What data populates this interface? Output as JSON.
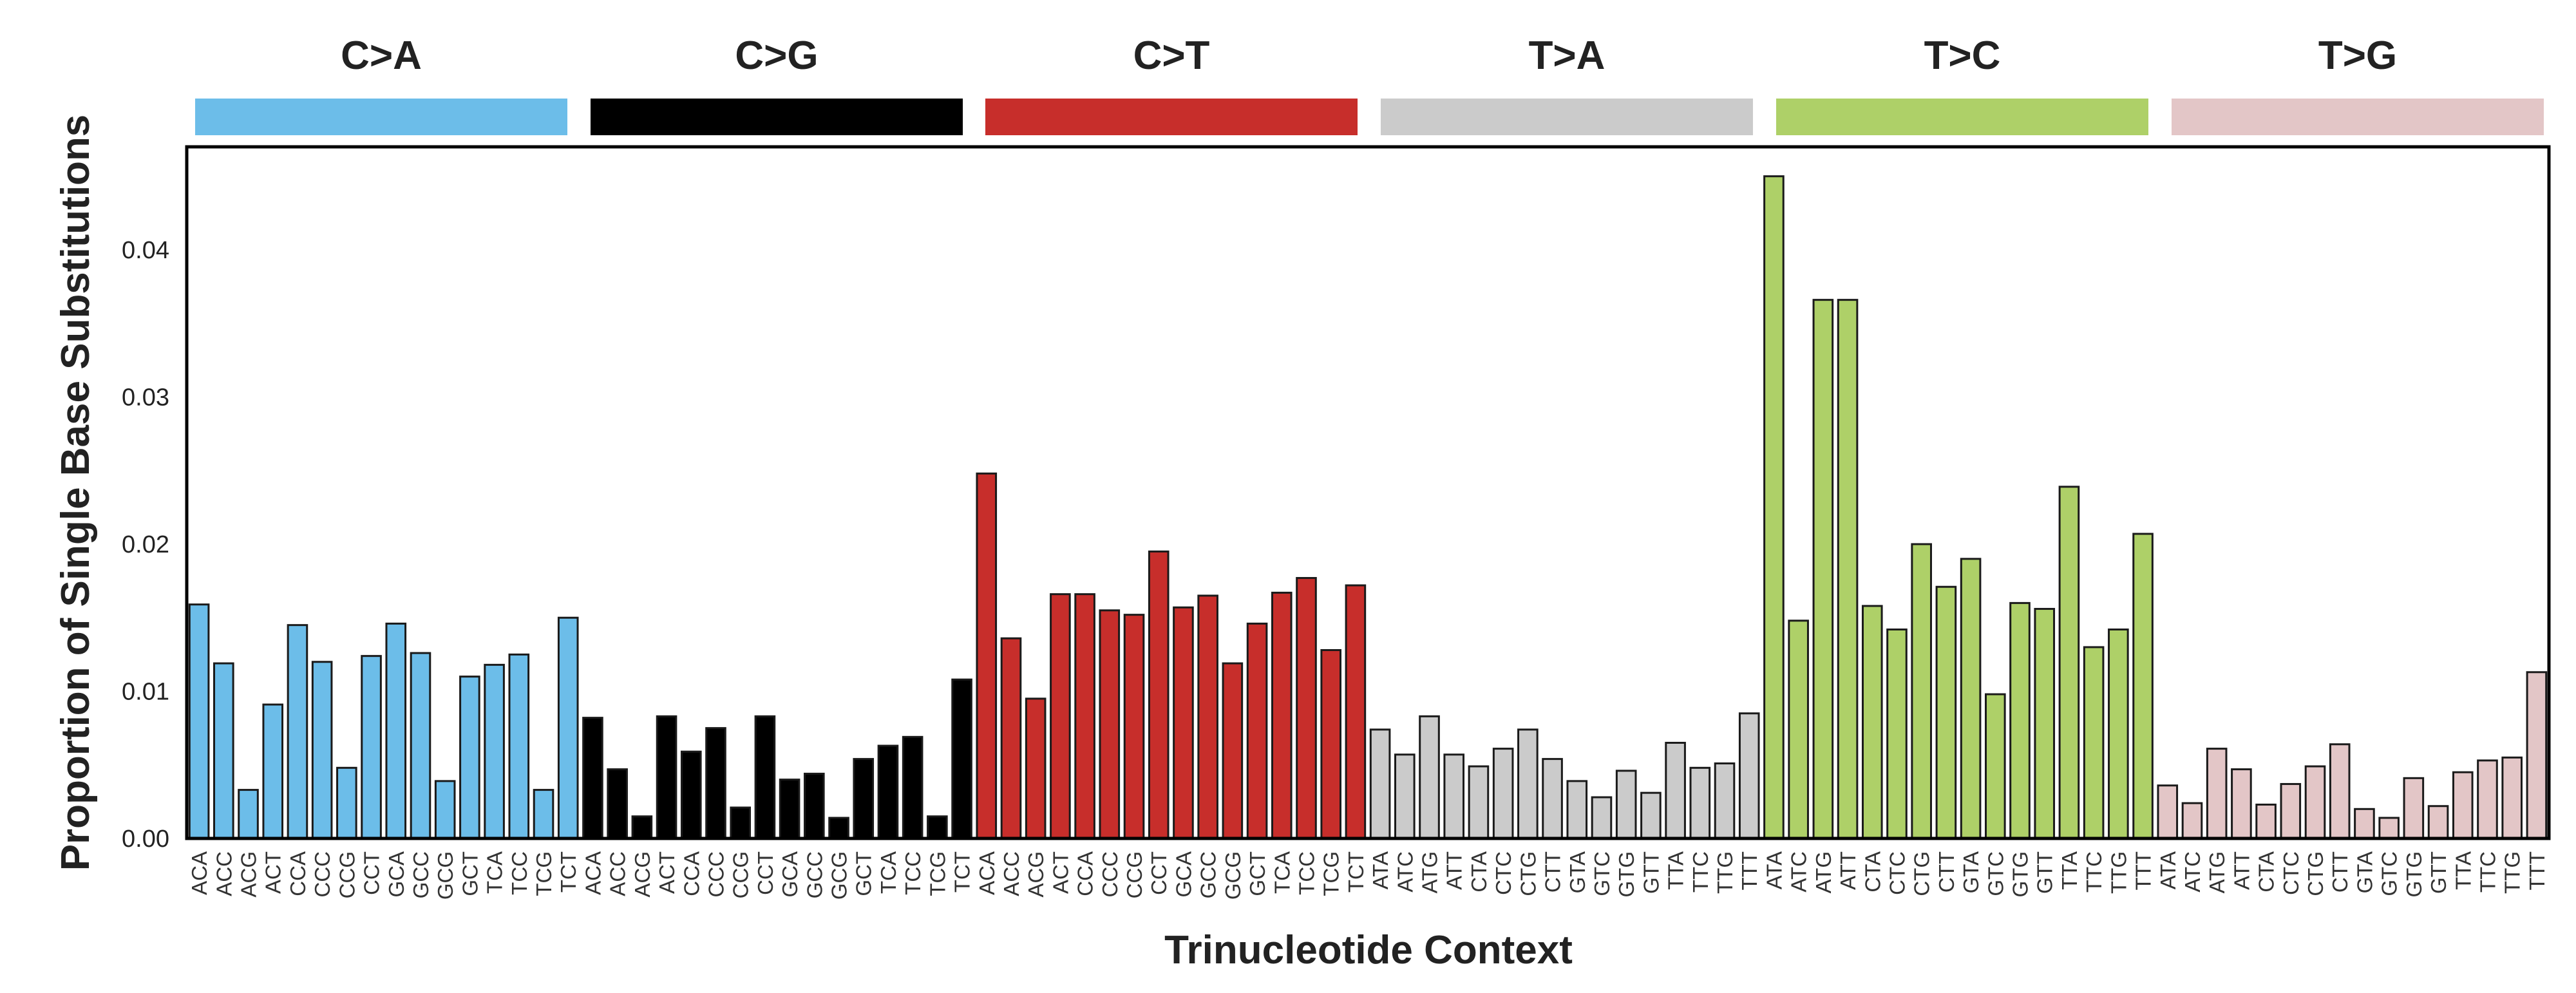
{
  "chart_data": {
    "type": "bar",
    "xlabel": "Trinucleotide Context",
    "ylabel": "Proportion of Single Base Substitutions",
    "ylim": [
      0,
      0.047
    ],
    "yticks": [
      0.0,
      0.01,
      0.02,
      0.03,
      0.04
    ],
    "ytick_labels": [
      "0.00",
      "0.01",
      "0.02",
      "0.03",
      "0.04"
    ],
    "grid": false,
    "groups": [
      {
        "name": "C>A",
        "color": "#6cbde9",
        "categories": [
          "ACA",
          "ACC",
          "ACG",
          "ACT",
          "CCA",
          "CCC",
          "CCG",
          "CCT",
          "GCA",
          "GCC",
          "GCG",
          "GCT",
          "TCA",
          "TCC",
          "TCG",
          "TCT"
        ],
        "values": [
          0.0159,
          0.0119,
          0.0033,
          0.0091,
          0.0145,
          0.012,
          0.0048,
          0.0124,
          0.0146,
          0.0126,
          0.0039,
          0.011,
          0.0118,
          0.0125,
          0.0033,
          0.015
        ]
      },
      {
        "name": "C>G",
        "color": "#000000",
        "categories": [
          "ACA",
          "ACC",
          "ACG",
          "ACT",
          "CCA",
          "CCC",
          "CCG",
          "CCT",
          "GCA",
          "GCC",
          "GCG",
          "GCT",
          "TCA",
          "TCC",
          "TCG",
          "TCT"
        ],
        "values": [
          0.0082,
          0.0047,
          0.0015,
          0.0083,
          0.0059,
          0.0075,
          0.0021,
          0.0083,
          0.004,
          0.0044,
          0.0014,
          0.0054,
          0.0063,
          0.0069,
          0.0015,
          0.0108
        ]
      },
      {
        "name": "C>T",
        "color": "#c72e2b",
        "categories": [
          "ACA",
          "ACC",
          "ACG",
          "ACT",
          "CCA",
          "CCC",
          "CCG",
          "CCT",
          "GCA",
          "GCC",
          "GCG",
          "GCT",
          "TCA",
          "TCC",
          "TCG",
          "TCT"
        ],
        "values": [
          0.0248,
          0.0136,
          0.0095,
          0.0166,
          0.0166,
          0.0155,
          0.0152,
          0.0195,
          0.0157,
          0.0165,
          0.0119,
          0.0146,
          0.0167,
          0.0177,
          0.0128,
          0.0172
        ]
      },
      {
        "name": "T>A",
        "color": "#cbcbcb",
        "categories": [
          "ATA",
          "ATC",
          "ATG",
          "ATT",
          "CTA",
          "CTC",
          "CTG",
          "CTT",
          "GTA",
          "GTC",
          "GTG",
          "GTT",
          "TTA",
          "TTC",
          "TTG",
          "TTT"
        ],
        "values": [
          0.0074,
          0.0057,
          0.0083,
          0.0057,
          0.0049,
          0.0061,
          0.0074,
          0.0054,
          0.0039,
          0.0028,
          0.0046,
          0.0031,
          0.0065,
          0.0048,
          0.0051,
          0.0085
        ]
      },
      {
        "name": "T>C",
        "color": "#aed068",
        "categories": [
          "ATA",
          "ATC",
          "ATG",
          "ATT",
          "CTA",
          "CTC",
          "CTG",
          "CTT",
          "GTA",
          "GTC",
          "GTG",
          "GTT",
          "TTA",
          "TTC",
          "TTG",
          "TTT"
        ],
        "values": [
          0.045,
          0.0148,
          0.0366,
          0.0366,
          0.0158,
          0.0142,
          0.02,
          0.0171,
          0.019,
          0.0098,
          0.016,
          0.0156,
          0.0239,
          0.013,
          0.0142,
          0.0207
        ]
      },
      {
        "name": "T>G",
        "color": "#e3c6c7",
        "categories": [
          "ATA",
          "ATC",
          "ATG",
          "ATT",
          "CTA",
          "CTC",
          "CTG",
          "CTT",
          "GTA",
          "GTC",
          "GTG",
          "GTT",
          "TTA",
          "TTC",
          "TTG",
          "TTT"
        ],
        "values": [
          0.0036,
          0.0024,
          0.0061,
          0.0047,
          0.0023,
          0.0037,
          0.0049,
          0.0064,
          0.002,
          0.0014,
          0.0041,
          0.0022,
          0.0045,
          0.0053,
          0.0055,
          0.0113
        ]
      }
    ]
  }
}
